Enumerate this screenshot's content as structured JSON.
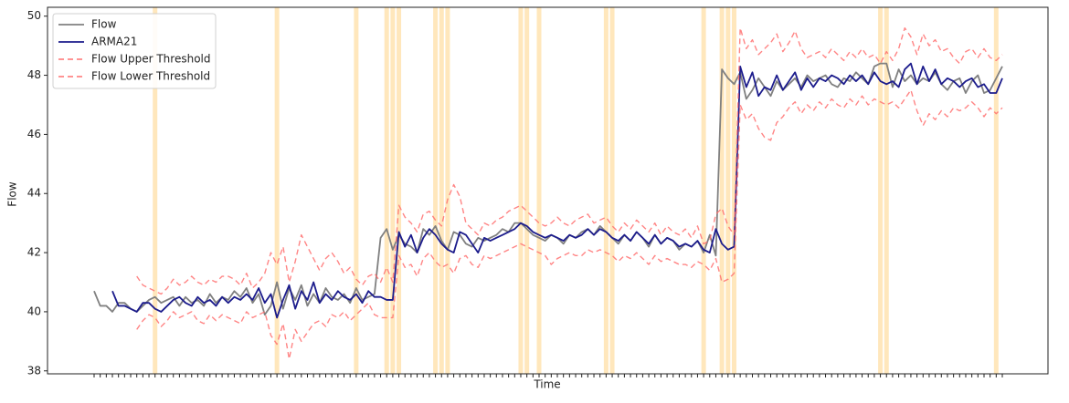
{
  "chart_data": {
    "type": "line",
    "x_label": "Time",
    "y_label": "Flow",
    "ylim": [
      37.9,
      50.3
    ],
    "yticks": [
      38,
      40,
      42,
      44,
      46,
      48,
      50
    ],
    "legend": "upper left",
    "highlight_color": "#ffe4b5",
    "highlights": [
      10,
      30,
      43,
      48,
      49,
      50,
      56,
      57,
      58,
      70,
      71,
      73,
      84,
      85,
      100,
      103,
      104,
      105,
      129,
      130,
      148
    ],
    "categories": [
      null,
      null,
      null,
      null,
      null,
      null,
      null,
      null,
      null,
      null,
      null,
      null,
      null,
      null,
      null,
      null,
      null,
      null,
      null,
      null,
      null,
      null,
      null,
      null,
      null,
      null,
      null,
      null,
      null,
      null,
      null,
      null,
      null,
      null,
      null,
      null,
      null,
      null,
      null,
      null,
      null,
      null,
      null,
      null,
      null,
      null,
      null,
      null,
      null,
      null,
      null,
      null,
      null,
      null,
      null,
      null,
      null,
      null,
      null,
      null,
      null,
      null,
      null,
      null,
      null,
      null,
      null,
      null,
      null,
      null,
      null,
      null,
      null,
      null,
      null,
      null,
      null,
      null,
      null,
      null,
      null,
      null,
      null,
      null,
      null,
      null,
      null,
      null,
      null,
      null,
      null,
      null,
      null,
      null,
      null,
      null,
      null,
      null,
      null,
      null,
      null,
      null,
      null,
      null,
      null,
      null,
      null,
      null,
      null,
      null,
      null,
      null,
      null,
      null,
      null,
      null,
      null,
      null,
      null,
      null,
      null,
      null,
      null,
      null,
      null,
      null,
      null,
      null,
      null,
      null,
      null,
      null,
      null,
      null,
      null,
      null,
      null,
      null,
      null,
      null,
      null,
      null,
      null,
      null,
      null,
      null,
      null,
      null,
      null,
      null
    ],
    "series": [
      {
        "name": "Flow",
        "color": "#808080",
        "dash": false,
        "values": [
          40.7,
          40.2,
          40.2,
          40.0,
          40.3,
          40.3,
          40.1,
          40.0,
          40.2,
          40.4,
          40.5,
          40.3,
          40.4,
          40.5,
          40.2,
          40.5,
          40.3,
          40.4,
          40.2,
          40.6,
          40.3,
          40.5,
          40.4,
          40.7,
          40.5,
          40.8,
          40.3,
          40.6,
          39.9,
          40.2,
          41.0,
          40.1,
          40.8,
          40.4,
          40.9,
          40.2,
          40.6,
          40.3,
          40.8,
          40.5,
          40.4,
          40.6,
          40.3,
          40.8,
          40.4,
          40.5,
          40.6,
          42.5,
          42.8,
          42.1,
          42.6,
          42.3,
          42.2,
          42.0,
          42.8,
          42.6,
          42.9,
          42.4,
          42.1,
          42.7,
          42.6,
          42.3,
          42.2,
          42.5,
          42.4,
          42.5,
          42.6,
          42.8,
          42.7,
          43.0,
          43.0,
          42.8,
          42.6,
          42.5,
          42.4,
          42.6,
          42.5,
          42.3,
          42.6,
          42.5,
          42.7,
          42.8,
          42.6,
          42.9,
          42.7,
          42.5,
          42.3,
          42.6,
          42.4,
          42.7,
          42.5,
          42.2,
          42.6,
          42.3,
          42.5,
          42.4,
          42.1,
          42.3,
          42.2,
          42.4,
          42.0,
          42.6,
          41.9,
          48.2,
          47.9,
          47.7,
          48.1,
          47.2,
          47.5,
          47.9,
          47.6,
          47.3,
          47.8,
          47.5,
          47.7,
          47.9,
          47.6,
          48.0,
          47.8,
          47.9,
          48.0,
          47.7,
          47.6,
          47.9,
          47.8,
          48.1,
          47.9,
          47.7,
          48.3,
          48.4,
          48.4,
          47.6,
          48.2,
          47.8,
          48.0,
          47.7,
          47.9,
          47.8,
          48.1,
          47.7,
          47.5,
          47.8,
          47.9,
          47.4,
          47.8,
          48.0,
          47.4,
          47.5,
          47.9,
          48.3
        ]
      },
      {
        "name": "ARMA21",
        "color": "#1c1c8c",
        "dash": false,
        "values": [
          null,
          null,
          null,
          40.7,
          40.2,
          40.2,
          40.1,
          40.0,
          40.3,
          40.3,
          40.1,
          40.0,
          40.2,
          40.4,
          40.5,
          40.3,
          40.2,
          40.5,
          40.3,
          40.4,
          40.2,
          40.5,
          40.3,
          40.5,
          40.4,
          40.6,
          40.4,
          40.8,
          40.3,
          40.6,
          39.8,
          40.4,
          40.9,
          40.1,
          40.7,
          40.4,
          41.0,
          40.3,
          40.6,
          40.4,
          40.7,
          40.5,
          40.4,
          40.6,
          40.3,
          40.7,
          40.5,
          40.5,
          40.4,
          40.4,
          42.7,
          42.2,
          42.6,
          42.0,
          42.5,
          42.8,
          42.6,
          42.3,
          42.1,
          42.0,
          42.7,
          42.6,
          42.3,
          42.0,
          42.5,
          42.4,
          42.5,
          42.6,
          42.7,
          42.8,
          43.0,
          42.9,
          42.7,
          42.6,
          42.5,
          42.6,
          42.5,
          42.4,
          42.6,
          42.5,
          42.6,
          42.8,
          42.6,
          42.8,
          42.7,
          42.5,
          42.4,
          42.6,
          42.4,
          42.7,
          42.5,
          42.3,
          42.6,
          42.3,
          42.5,
          42.4,
          42.2,
          42.3,
          42.2,
          42.4,
          42.1,
          42.0,
          42.8,
          42.3,
          42.1,
          42.2,
          48.3,
          47.6,
          48.1,
          47.3,
          47.6,
          47.5,
          48.0,
          47.5,
          47.8,
          48.1,
          47.5,
          47.9,
          47.6,
          47.9,
          47.8,
          48.0,
          47.9,
          47.7,
          48.0,
          47.8,
          48.0,
          47.7,
          48.1,
          47.8,
          47.7,
          47.8,
          47.6,
          48.2,
          48.4,
          47.7,
          48.3,
          47.8,
          48.2,
          47.7,
          47.9,
          47.8,
          47.6,
          47.8,
          47.9,
          47.6,
          47.7,
          47.4,
          47.4,
          47.9
        ]
      },
      {
        "name": "Flow Upper Threshold",
        "color": "#ff7070",
        "dash": true,
        "values": [
          null,
          null,
          null,
          null,
          null,
          null,
          null,
          41.2,
          40.9,
          40.8,
          40.7,
          40.6,
          40.8,
          41.1,
          40.9,
          41.0,
          41.2,
          41.0,
          40.9,
          41.1,
          41.0,
          41.2,
          41.2,
          41.1,
          40.9,
          41.3,
          40.8,
          41.0,
          41.3,
          42.0,
          41.6,
          42.2,
          41.0,
          41.7,
          42.6,
          42.2,
          41.8,
          41.4,
          41.8,
          42.0,
          41.7,
          41.3,
          41.5,
          41.1,
          40.9,
          41.2,
          41.3,
          41.0,
          41.5,
          41.0,
          43.6,
          43.2,
          43.0,
          42.7,
          43.3,
          43.4,
          43.1,
          42.9,
          43.8,
          44.3,
          43.9,
          43.0,
          42.8,
          42.6,
          43.0,
          42.9,
          43.1,
          43.2,
          43.4,
          43.5,
          43.6,
          43.4,
          43.2,
          43.0,
          42.9,
          43.0,
          43.2,
          43.0,
          42.9,
          43.1,
          43.2,
          43.3,
          43.0,
          43.1,
          43.2,
          42.9,
          42.7,
          43.0,
          42.8,
          43.1,
          42.9,
          42.7,
          43.0,
          42.6,
          42.9,
          42.7,
          42.6,
          42.8,
          42.5,
          42.9,
          42.3,
          42.4,
          43.3,
          43.5,
          42.9,
          42.6,
          49.6,
          48.9,
          49.2,
          48.7,
          48.9,
          49.1,
          49.4,
          48.8,
          49.1,
          49.5,
          48.9,
          48.6,
          48.7,
          48.8,
          48.6,
          48.9,
          48.7,
          48.5,
          48.8,
          48.6,
          48.9,
          48.6,
          48.7,
          48.4,
          48.8,
          48.5,
          48.9,
          49.6,
          49.3,
          48.7,
          49.4,
          49.0,
          49.2,
          48.8,
          48.9,
          48.6,
          48.4,
          48.8,
          48.9,
          48.6,
          48.9,
          48.6,
          48.5,
          48.7
        ]
      },
      {
        "name": "Flow Lower Threshold",
        "color": "#ff7070",
        "dash": true,
        "values": [
          null,
          null,
          null,
          null,
          null,
          null,
          null,
          39.4,
          39.7,
          39.9,
          39.8,
          39.5,
          39.7,
          40.0,
          39.8,
          39.9,
          40.0,
          39.7,
          39.6,
          39.9,
          39.7,
          39.9,
          39.8,
          39.7,
          39.6,
          40.0,
          39.8,
          39.9,
          40.0,
          39.2,
          38.9,
          39.6,
          38.4,
          39.4,
          39.0,
          39.3,
          39.6,
          39.7,
          39.5,
          39.9,
          39.8,
          40.0,
          39.7,
          39.9,
          40.1,
          40.3,
          39.9,
          39.8,
          39.8,
          39.8,
          41.9,
          41.5,
          41.6,
          41.2,
          41.8,
          42.0,
          41.7,
          41.5,
          41.6,
          41.3,
          41.8,
          41.9,
          41.6,
          41.5,
          41.9,
          41.8,
          41.9,
          42.0,
          42.1,
          42.2,
          42.3,
          42.2,
          42.1,
          42.0,
          41.9,
          41.6,
          41.8,
          41.9,
          42.0,
          41.9,
          41.9,
          42.1,
          42.0,
          42.1,
          42.0,
          41.9,
          41.7,
          41.9,
          41.8,
          42.0,
          41.8,
          41.6,
          41.9,
          41.7,
          41.8,
          41.7,
          41.6,
          41.6,
          41.5,
          41.7,
          41.6,
          41.4,
          41.8,
          41.0,
          41.1,
          41.3,
          47.0,
          46.5,
          46.7,
          46.2,
          45.9,
          45.8,
          46.4,
          46.6,
          46.9,
          47.1,
          46.7,
          47.0,
          46.8,
          47.1,
          46.9,
          47.2,
          47.0,
          46.9,
          47.2,
          47.0,
          47.3,
          47.0,
          47.2,
          47.1,
          47.0,
          47.1,
          46.9,
          47.2,
          47.5,
          46.8,
          46.3,
          46.7,
          46.5,
          46.8,
          46.6,
          46.9,
          46.8,
          46.9,
          47.1,
          46.9,
          46.6,
          46.9,
          46.7,
          46.9
        ]
      }
    ]
  }
}
